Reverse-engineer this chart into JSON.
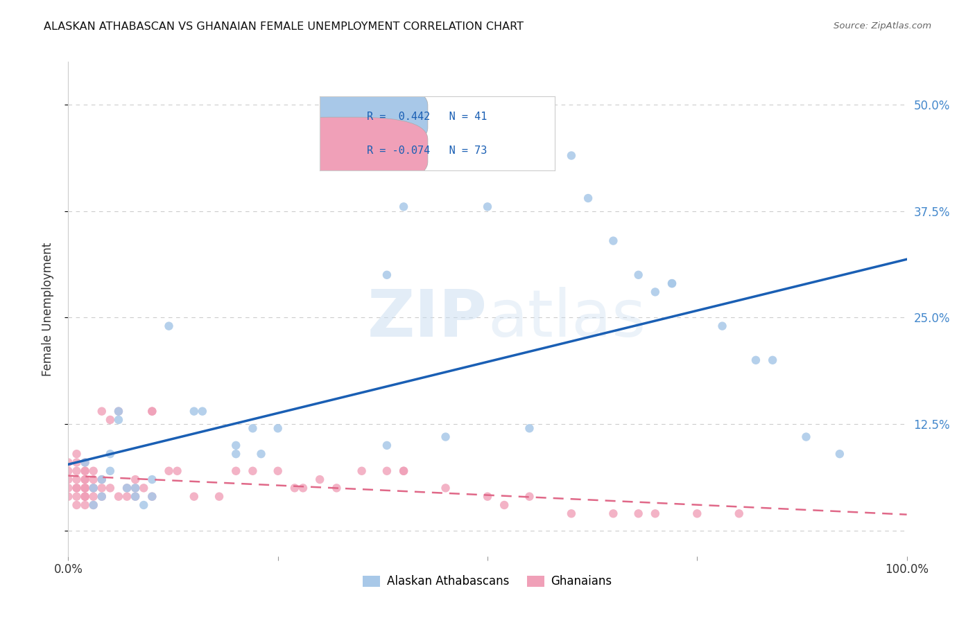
{
  "title": "ALASKAN ATHABASCAN VS GHANAIAN FEMALE UNEMPLOYMENT CORRELATION CHART",
  "source": "Source: ZipAtlas.com",
  "ylabel": "Female Unemployment",
  "xlim": [
    0,
    1.0
  ],
  "ylim": [
    -0.03,
    0.55
  ],
  "yticks": [
    0.0,
    0.125,
    0.25,
    0.375,
    0.5
  ],
  "ytick_labels": [
    "",
    "12.5%",
    "25.0%",
    "37.5%",
    "50.0%"
  ],
  "xticks": [
    0.0,
    0.25,
    0.5,
    0.75,
    1.0
  ],
  "xtick_labels": [
    "0.0%",
    "",
    "",
    "",
    "100.0%"
  ],
  "label1": "Alaskan Athabascans",
  "label2": "Ghanaians",
  "color1": "#A8C8E8",
  "color2": "#F0A0B8",
  "trendline1_color": "#1a5fb4",
  "trendline2_color": "#E06888",
  "background_color": "#FFFFFF",
  "title_color": "#111111",
  "source_color": "#666666",
  "grid_color": "#CCCCCC",
  "right_axis_color": "#4488CC",
  "watermark_color": "#C8DCF0",
  "blue_points": [
    [
      0.02,
      0.08
    ],
    [
      0.03,
      0.05
    ],
    [
      0.03,
      0.03
    ],
    [
      0.04,
      0.06
    ],
    [
      0.04,
      0.04
    ],
    [
      0.05,
      0.07
    ],
    [
      0.05,
      0.09
    ],
    [
      0.06,
      0.13
    ],
    [
      0.06,
      0.14
    ],
    [
      0.07,
      0.05
    ],
    [
      0.08,
      0.05
    ],
    [
      0.08,
      0.04
    ],
    [
      0.09,
      0.03
    ],
    [
      0.1,
      0.04
    ],
    [
      0.1,
      0.06
    ],
    [
      0.12,
      0.24
    ],
    [
      0.15,
      0.14
    ],
    [
      0.16,
      0.14
    ],
    [
      0.2,
      0.1
    ],
    [
      0.2,
      0.09
    ],
    [
      0.22,
      0.12
    ],
    [
      0.23,
      0.09
    ],
    [
      0.25,
      0.12
    ],
    [
      0.38,
      0.1
    ],
    [
      0.38,
      0.3
    ],
    [
      0.4,
      0.38
    ],
    [
      0.45,
      0.11
    ],
    [
      0.5,
      0.38
    ],
    [
      0.55,
      0.12
    ],
    [
      0.6,
      0.44
    ],
    [
      0.62,
      0.39
    ],
    [
      0.65,
      0.34
    ],
    [
      0.68,
      0.3
    ],
    [
      0.7,
      0.28
    ],
    [
      0.72,
      0.29
    ],
    [
      0.72,
      0.29
    ],
    [
      0.78,
      0.24
    ],
    [
      0.82,
      0.2
    ],
    [
      0.84,
      0.2
    ],
    [
      0.88,
      0.11
    ],
    [
      0.92,
      0.09
    ]
  ],
  "pink_points": [
    [
      0.0,
      0.06
    ],
    [
      0.0,
      0.05
    ],
    [
      0.0,
      0.04
    ],
    [
      0.0,
      0.08
    ],
    [
      0.0,
      0.07
    ],
    [
      0.01,
      0.05
    ],
    [
      0.01,
      0.06
    ],
    [
      0.01,
      0.04
    ],
    [
      0.01,
      0.03
    ],
    [
      0.01,
      0.07
    ],
    [
      0.01,
      0.08
    ],
    [
      0.01,
      0.09
    ],
    [
      0.01,
      0.05
    ],
    [
      0.02,
      0.04
    ],
    [
      0.02,
      0.05
    ],
    [
      0.02,
      0.06
    ],
    [
      0.02,
      0.07
    ],
    [
      0.02,
      0.04
    ],
    [
      0.02,
      0.03
    ],
    [
      0.02,
      0.05
    ],
    [
      0.02,
      0.06
    ],
    [
      0.02,
      0.07
    ],
    [
      0.02,
      0.05
    ],
    [
      0.02,
      0.04
    ],
    [
      0.02,
      0.08
    ],
    [
      0.03,
      0.04
    ],
    [
      0.03,
      0.05
    ],
    [
      0.03,
      0.06
    ],
    [
      0.03,
      0.03
    ],
    [
      0.03,
      0.05
    ],
    [
      0.03,
      0.07
    ],
    [
      0.04,
      0.04
    ],
    [
      0.04,
      0.05
    ],
    [
      0.04,
      0.06
    ],
    [
      0.04,
      0.14
    ],
    [
      0.05,
      0.05
    ],
    [
      0.05,
      0.13
    ],
    [
      0.06,
      0.14
    ],
    [
      0.06,
      0.04
    ],
    [
      0.07,
      0.04
    ],
    [
      0.07,
      0.05
    ],
    [
      0.08,
      0.06
    ],
    [
      0.08,
      0.05
    ],
    [
      0.08,
      0.04
    ],
    [
      0.09,
      0.05
    ],
    [
      0.1,
      0.04
    ],
    [
      0.1,
      0.14
    ],
    [
      0.1,
      0.14
    ],
    [
      0.12,
      0.07
    ],
    [
      0.13,
      0.07
    ],
    [
      0.15,
      0.04
    ],
    [
      0.18,
      0.04
    ],
    [
      0.2,
      0.07
    ],
    [
      0.22,
      0.07
    ],
    [
      0.25,
      0.07
    ],
    [
      0.27,
      0.05
    ],
    [
      0.28,
      0.05
    ],
    [
      0.3,
      0.06
    ],
    [
      0.32,
      0.05
    ],
    [
      0.35,
      0.07
    ],
    [
      0.38,
      0.07
    ],
    [
      0.4,
      0.07
    ],
    [
      0.4,
      0.07
    ],
    [
      0.45,
      0.05
    ],
    [
      0.5,
      0.04
    ],
    [
      0.52,
      0.03
    ],
    [
      0.55,
      0.04
    ],
    [
      0.6,
      0.02
    ],
    [
      0.65,
      0.02
    ],
    [
      0.68,
      0.02
    ],
    [
      0.7,
      0.02
    ],
    [
      0.75,
      0.02
    ],
    [
      0.8,
      0.02
    ]
  ]
}
